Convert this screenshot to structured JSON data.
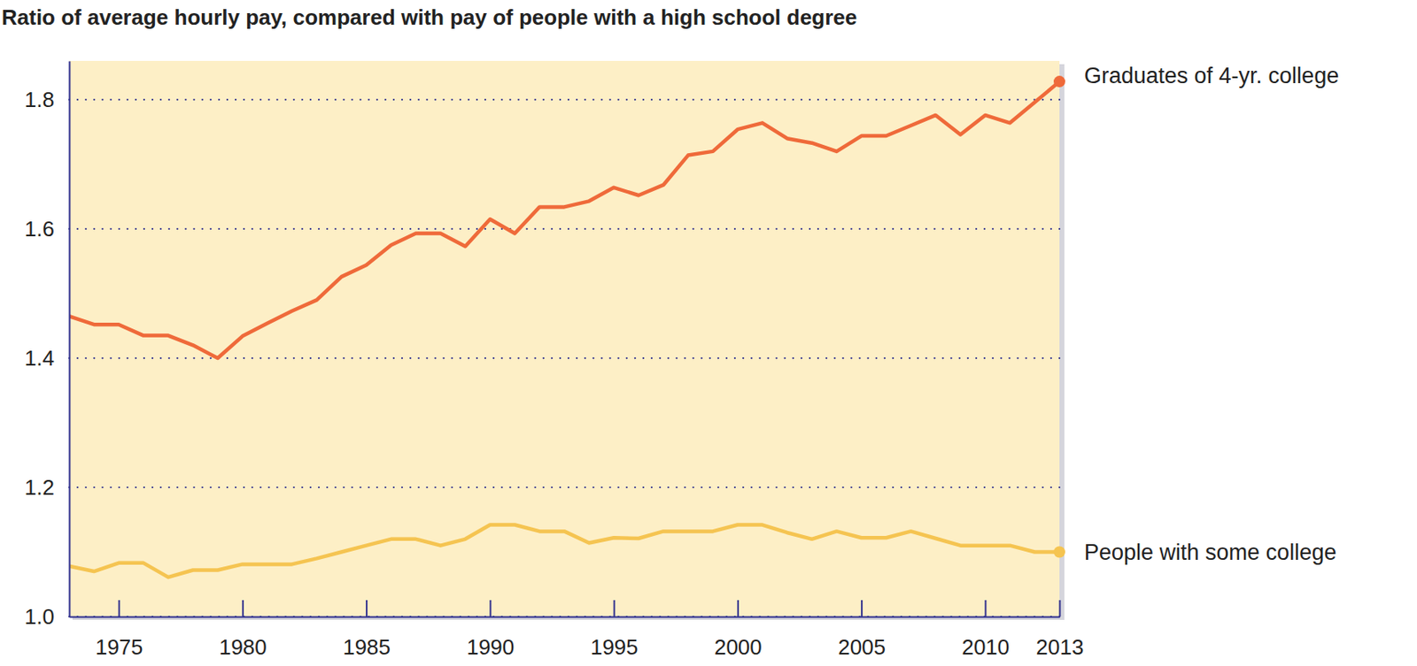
{
  "chart_data": {
    "type": "line",
    "title": "Ratio of average hourly pay, compared with pay of people with a high school degree",
    "x": [
      1973,
      1974,
      1975,
      1976,
      1977,
      1978,
      1979,
      1980,
      1981,
      1982,
      1983,
      1984,
      1985,
      1986,
      1987,
      1988,
      1989,
      1990,
      1991,
      1992,
      1993,
      1994,
      1995,
      1996,
      1997,
      1998,
      1999,
      2000,
      2001,
      2002,
      2003,
      2004,
      2005,
      2006,
      2007,
      2008,
      2009,
      2010,
      2011,
      2012,
      2013
    ],
    "series": [
      {
        "name": "Graduates of 4-yr. college",
        "color": "#ef6a3a",
        "values": [
          1.465,
          1.452,
          1.452,
          1.435,
          1.435,
          1.42,
          1.4,
          1.434,
          1.454,
          1.473,
          1.49,
          1.526,
          1.544,
          1.575,
          1.593,
          1.593,
          1.573,
          1.615,
          1.593,
          1.634,
          1.634,
          1.643,
          1.664,
          1.652,
          1.668,
          1.714,
          1.72,
          1.754,
          1.764,
          1.74,
          1.733,
          1.72,
          1.744,
          1.744,
          1.76,
          1.776,
          1.746,
          1.776,
          1.764,
          1.796,
          1.828
        ]
      },
      {
        "name": "People with some college",
        "color": "#f5c451",
        "values": [
          1.078,
          1.07,
          1.083,
          1.083,
          1.061,
          1.072,
          1.072,
          1.081,
          1.081,
          1.081,
          1.09,
          1.1,
          1.11,
          1.12,
          1.12,
          1.11,
          1.12,
          1.142,
          1.142,
          1.132,
          1.132,
          1.114,
          1.122,
          1.121,
          1.132,
          1.132,
          1.132,
          1.142,
          1.142,
          1.13,
          1.12,
          1.132,
          1.122,
          1.122,
          1.132,
          1.121,
          1.11,
          1.11,
          1.11,
          1.1,
          1.1
        ]
      }
    ],
    "xlim": [
      1973,
      2013
    ],
    "xticks": [
      1975,
      1980,
      1985,
      1990,
      1995,
      2000,
      2005,
      2010,
      2013
    ],
    "ylim": [
      1.0,
      1.86
    ],
    "yticks": [
      {
        "value": 1,
        "label": "1.0"
      },
      1.2,
      1.4,
      1.6,
      1.8
    ],
    "grid": true
  }
}
